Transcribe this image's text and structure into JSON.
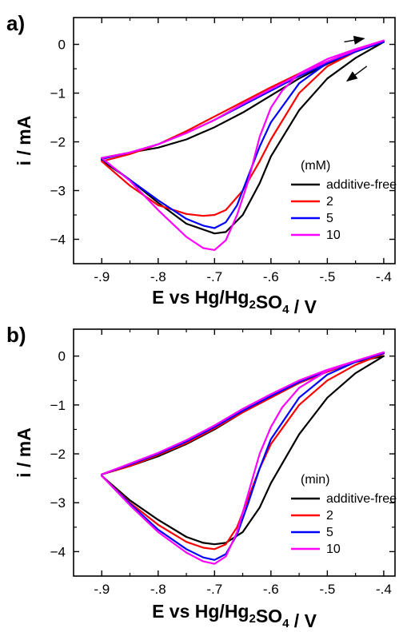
{
  "chart_data": [
    {
      "panel_label": "a)",
      "type": "line",
      "xlabel": "E vs Hg/Hg2SO4 / V",
      "ylabel": "i / mA",
      "xlim": [
        -0.95,
        -0.38
      ],
      "ylim": [
        -4.5,
        0.55
      ],
      "xticks": [
        -0.9,
        -0.8,
        -0.7,
        -0.6,
        -0.5,
        -0.4
      ],
      "yticks": [
        0,
        -1,
        -2,
        -3,
        -4
      ],
      "legend_title": "(mM)",
      "legend_position": "lower-right",
      "arrows": "forward scan rightward at top, return scan leftward",
      "series": [
        {
          "name": "additive-free",
          "color": "#000000",
          "x": [
            -0.9,
            -0.85,
            -0.8,
            -0.75,
            -0.7,
            -0.68,
            -0.65,
            -0.62,
            -0.6,
            -0.55,
            -0.5,
            -0.45,
            -0.4,
            -0.45,
            -0.5,
            -0.55,
            -0.6,
            -0.65,
            -0.7,
            -0.75,
            -0.8,
            -0.85,
            -0.9
          ],
          "y": [
            -2.38,
            -2.78,
            -3.25,
            -3.68,
            -3.88,
            -3.85,
            -3.5,
            -2.85,
            -2.3,
            -1.35,
            -0.7,
            -0.28,
            0.05,
            -0.15,
            -0.4,
            -0.7,
            -1.05,
            -1.4,
            -1.7,
            -1.95,
            -2.12,
            -2.22,
            -2.33
          ]
        },
        {
          "name": "2",
          "color": "#ff0000",
          "x": [
            -0.9,
            -0.85,
            -0.8,
            -0.75,
            -0.72,
            -0.7,
            -0.68,
            -0.65,
            -0.62,
            -0.6,
            -0.55,
            -0.5,
            -0.45,
            -0.4,
            -0.45,
            -0.5,
            -0.55,
            -0.6,
            -0.65,
            -0.7,
            -0.75,
            -0.8,
            -0.85,
            -0.9
          ],
          "y": [
            -2.4,
            -2.9,
            -3.3,
            -3.48,
            -3.52,
            -3.5,
            -3.4,
            -3.0,
            -2.4,
            -1.95,
            -1.0,
            -0.45,
            -0.15,
            0.05,
            -0.15,
            -0.35,
            -0.6,
            -0.88,
            -1.18,
            -1.48,
            -1.78,
            -2.05,
            -2.25,
            -2.4
          ]
        },
        {
          "name": "5",
          "color": "#0000ff",
          "x": [
            -0.9,
            -0.85,
            -0.8,
            -0.75,
            -0.72,
            -0.7,
            -0.68,
            -0.66,
            -0.64,
            -0.62,
            -0.6,
            -0.55,
            -0.5,
            -0.45,
            -0.4,
            -0.45,
            -0.5,
            -0.55,
            -0.6,
            -0.65,
            -0.7,
            -0.75,
            -0.8,
            -0.85,
            -0.9
          ],
          "y": [
            -2.35,
            -2.78,
            -3.2,
            -3.58,
            -3.72,
            -3.77,
            -3.65,
            -3.3,
            -2.7,
            -2.1,
            -1.6,
            -0.8,
            -0.38,
            -0.12,
            0.05,
            -0.15,
            -0.38,
            -0.65,
            -0.95,
            -1.25,
            -1.55,
            -1.82,
            -2.05,
            -2.22,
            -2.35
          ]
        },
        {
          "name": "10",
          "color": "#ff00ff",
          "x": [
            -0.9,
            -0.85,
            -0.8,
            -0.75,
            -0.72,
            -0.7,
            -0.68,
            -0.66,
            -0.64,
            -0.62,
            -0.6,
            -0.58,
            -0.55,
            -0.5,
            -0.45,
            -0.4,
            -0.45,
            -0.5,
            -0.55,
            -0.6,
            -0.65,
            -0.7,
            -0.75,
            -0.8,
            -0.85,
            -0.9
          ],
          "y": [
            -2.33,
            -2.8,
            -3.4,
            -3.95,
            -4.18,
            -4.22,
            -4.02,
            -3.5,
            -2.8,
            -1.9,
            -1.3,
            -0.95,
            -0.6,
            -0.3,
            -0.1,
            0.08,
            -0.12,
            -0.35,
            -0.62,
            -0.92,
            -1.22,
            -1.55,
            -1.82,
            -2.05,
            -2.22,
            -2.33
          ]
        }
      ]
    },
    {
      "panel_label": "b)",
      "type": "line",
      "xlabel": "E vs Hg/Hg2SO4 / V",
      "ylabel": "i / mA",
      "xlim": [
        -0.95,
        -0.38
      ],
      "ylim": [
        -4.5,
        0.55
      ],
      "xticks": [
        -0.9,
        -0.8,
        -0.7,
        -0.6,
        -0.5,
        -0.4
      ],
      "yticks": [
        0,
        -1,
        -2,
        -3,
        -4
      ],
      "legend_title": "(min)",
      "legend_position": "lower-right",
      "series": [
        {
          "name": "additive-free",
          "color": "#000000",
          "x": [
            -0.9,
            -0.85,
            -0.8,
            -0.75,
            -0.72,
            -0.7,
            -0.68,
            -0.65,
            -0.62,
            -0.6,
            -0.55,
            -0.5,
            -0.45,
            -0.4,
            -0.45,
            -0.5,
            -0.55,
            -0.6,
            -0.65,
            -0.7,
            -0.75,
            -0.8,
            -0.85,
            -0.9
          ],
          "y": [
            -2.45,
            -2.95,
            -3.35,
            -3.7,
            -3.82,
            -3.85,
            -3.82,
            -3.6,
            -3.1,
            -2.6,
            -1.6,
            -0.85,
            -0.35,
            0.0,
            -0.12,
            -0.32,
            -0.55,
            -0.85,
            -1.15,
            -1.5,
            -1.8,
            -2.05,
            -2.25,
            -2.42
          ]
        },
        {
          "name": "2",
          "color": "#ff0000",
          "x": [
            -0.9,
            -0.85,
            -0.8,
            -0.75,
            -0.72,
            -0.7,
            -0.68,
            -0.66,
            -0.64,
            -0.62,
            -0.6,
            -0.55,
            -0.5,
            -0.45,
            -0.4,
            -0.45,
            -0.5,
            -0.55,
            -0.6,
            -0.65,
            -0.7,
            -0.75,
            -0.8,
            -0.85,
            -0.9
          ],
          "y": [
            -2.45,
            -3.0,
            -3.45,
            -3.8,
            -3.92,
            -3.95,
            -3.85,
            -3.5,
            -2.9,
            -2.3,
            -1.8,
            -1.0,
            -0.5,
            -0.18,
            0.05,
            -0.12,
            -0.32,
            -0.55,
            -0.85,
            -1.15,
            -1.48,
            -1.78,
            -2.02,
            -2.25,
            -2.42
          ]
        },
        {
          "name": "5",
          "color": "#0000ff",
          "x": [
            -0.9,
            -0.85,
            -0.8,
            -0.75,
            -0.72,
            -0.7,
            -0.68,
            -0.66,
            -0.64,
            -0.62,
            -0.6,
            -0.55,
            -0.5,
            -0.45,
            -0.4,
            -0.45,
            -0.5,
            -0.55,
            -0.6,
            -0.65,
            -0.7,
            -0.75,
            -0.8,
            -0.85,
            -0.9
          ],
          "y": [
            -2.45,
            -3.02,
            -3.55,
            -3.95,
            -4.12,
            -4.17,
            -4.05,
            -3.65,
            -3.0,
            -2.3,
            -1.7,
            -0.85,
            -0.38,
            -0.12,
            0.06,
            -0.12,
            -0.3,
            -0.53,
            -0.82,
            -1.12,
            -1.45,
            -1.75,
            -2.0,
            -2.22,
            -2.42
          ]
        },
        {
          "name": "10",
          "color": "#ff00ff",
          "x": [
            -0.9,
            -0.85,
            -0.8,
            -0.75,
            -0.72,
            -0.7,
            -0.68,
            -0.66,
            -0.64,
            -0.62,
            -0.6,
            -0.58,
            -0.55,
            -0.5,
            -0.45,
            -0.4,
            -0.45,
            -0.5,
            -0.55,
            -0.6,
            -0.65,
            -0.7,
            -0.75,
            -0.8,
            -0.85,
            -0.9
          ],
          "y": [
            -2.45,
            -3.05,
            -3.6,
            -4.02,
            -4.2,
            -4.25,
            -4.1,
            -3.6,
            -2.8,
            -2.0,
            -1.45,
            -1.05,
            -0.65,
            -0.3,
            -0.1,
            0.08,
            -0.1,
            -0.28,
            -0.5,
            -0.78,
            -1.08,
            -1.42,
            -1.72,
            -1.98,
            -2.2,
            -2.42
          ]
        }
      ]
    }
  ]
}
